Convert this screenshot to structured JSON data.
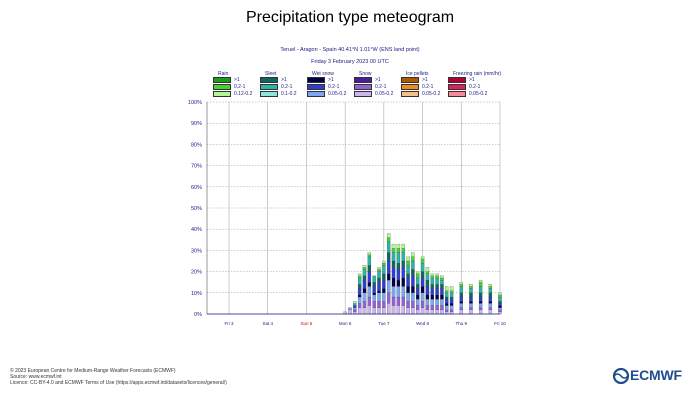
{
  "title": "Precipitation type meteogram",
  "subtitle_location": "Teruel - Aragon - Spain 40.41°N 1.01°W (ENS land point)",
  "subtitle_date": "Friday 3 February 2023 00 UTC",
  "legend": {
    "title_suffix": "(mm/hr)",
    "groups": [
      {
        "name": "Rain",
        "levels": [
          ">1",
          "0.2-1",
          "0.12-0.2"
        ],
        "colors": [
          "#1e9a1e",
          "#44d230",
          "#b4f59c"
        ]
      },
      {
        "name": "Sleet",
        "levels": [
          ">1",
          "0.2-1",
          "0.1-0.2"
        ],
        "colors": [
          "#13655f",
          "#29b5a7",
          "#8ee4d8"
        ]
      },
      {
        "name": "Wet snow",
        "levels": [
          ">1",
          "0.2-1",
          "0.05-0.2"
        ],
        "colors": [
          "#000044",
          "#2f3ed0",
          "#7ba7f0"
        ]
      },
      {
        "name": "Snow",
        "levels": [
          ">1",
          "0.2-1",
          "0.05-0.2"
        ],
        "colors": [
          "#4b1aa0",
          "#9460d8",
          "#cbb6ee"
        ]
      },
      {
        "name": "Ice pellets",
        "levels": [
          ">1",
          "0.2-1",
          "0.05-0.2"
        ],
        "colors": [
          "#b05a00",
          "#f08a20",
          "#f5c088"
        ]
      },
      {
        "name": "Freezing rain",
        "levels": [
          ">1",
          "0.2-1",
          "0.05-0.2"
        ],
        "colors": [
          "#b0003a",
          "#e01e5a",
          "#f58a9a"
        ]
      }
    ]
  },
  "footer": {
    "line1": "© 2023 European Centre for Medium-Range Weather Forecasts (ECMWF)",
    "line2": "Source: www.ecmwf.int",
    "line3": "Licence: CC-BY-4.0 and ECMWF Terms of Use (https://apps.ecmwf.int/datasets/licences/general/)"
  },
  "logo_text": "ECMWF",
  "chart_data": {
    "type": "bar",
    "stacked": true,
    "y_unit": "%",
    "ylim": [
      0,
      100
    ],
    "yticks": [
      "0%",
      "10%",
      "20%",
      "30%",
      "40%",
      "50%",
      "60%",
      "70%",
      "80%",
      "90%",
      "100%"
    ],
    "xticks": [
      {
        "label": "Fri 3",
        "color": "#1a1a80"
      },
      {
        "label": "Sat 4",
        "color": "#1a1a80"
      },
      {
        "label": "Sun 5",
        "color": "#d00000"
      },
      {
        "label": "Mon 6",
        "color": "#1a1a80"
      },
      {
        "label": "Tue 7",
        "color": "#1a1a80"
      },
      {
        "label": "Wed 8",
        "color": "#1a1a80"
      },
      {
        "label": "Thu 9",
        "color": "#1a1a80"
      },
      {
        "label": "Fri 10",
        "color": "#1a1a80"
      }
    ],
    "grid": true,
    "categories": [
      "Mon 6 00",
      "Mon 6 03",
      "Mon 6 06",
      "Mon 6 09",
      "Mon 6 12",
      "Mon 6 15",
      "Mon 6 18",
      "Mon 6 21",
      "Tue 7 00",
      "Tue 7 03",
      "Tue 7 06",
      "Tue 7 09",
      "Tue 7 12",
      "Tue 7 15",
      "Tue 7 18",
      "Tue 7 21",
      "Wed 8 00",
      "Wed 8 03",
      "Wed 8 06",
      "Wed 8 09",
      "Wed 8 12",
      "Wed 8 15",
      "Wed 8 18",
      "Thu 9 00",
      "Thu 9 06",
      "Thu 9 12",
      "Thu 9 18",
      "Fri 10 00"
    ],
    "x_days": [
      3.0,
      3.125,
      3.25,
      3.375,
      3.5,
      3.625,
      3.75,
      3.875,
      4.0,
      4.125,
      4.25,
      4.375,
      4.5,
      4.625,
      4.75,
      4.875,
      5.0,
      5.125,
      5.25,
      5.375,
      5.5,
      5.625,
      5.75,
      6.0,
      6.25,
      6.5,
      6.75,
      7.0
    ],
    "series": [
      {
        "name": "Rain 0.2-1",
        "values": [
          0,
          0,
          0,
          1,
          1,
          1,
          0,
          1,
          1,
          2,
          2,
          2,
          2,
          2,
          2,
          2,
          2,
          1,
          1,
          1,
          1,
          1,
          1,
          1,
          1,
          2,
          1,
          1
        ]
      },
      {
        "name": "Rain 0.12-0.2",
        "values": [
          0,
          0,
          1,
          1,
          1,
          1,
          0,
          1,
          1,
          2,
          2,
          2,
          2,
          2,
          2,
          1,
          1,
          2,
          1,
          1,
          1,
          2,
          2,
          1,
          1,
          1,
          1,
          1
        ]
      },
      {
        "name": "Sleet >1",
        "values": [
          0,
          0,
          0,
          2,
          2,
          3,
          2,
          2,
          3,
          4,
          3,
          3,
          3,
          2,
          3,
          2,
          3,
          3,
          2,
          2,
          2,
          1,
          1,
          2,
          2,
          2,
          2,
          1
        ]
      },
      {
        "name": "Sleet 0.2-1",
        "values": [
          0,
          0,
          1,
          3,
          3,
          4,
          3,
          3,
          4,
          5,
          4,
          5,
          4,
          4,
          4,
          3,
          4,
          3,
          3,
          3,
          2,
          2,
          2,
          3,
          2,
          3,
          2,
          2
        ]
      },
      {
        "name": "Wet snow >1",
        "values": [
          0,
          0,
          0,
          1,
          2,
          2,
          1,
          1,
          2,
          3,
          4,
          3,
          4,
          3,
          3,
          2,
          3,
          2,
          2,
          2,
          2,
          1,
          1,
          1,
          1,
          1,
          1,
          1
        ]
      },
      {
        "name": "Wet snow 0.2-1",
        "values": [
          0,
          0,
          1,
          3,
          4,
          5,
          3,
          4,
          4,
          6,
          5,
          5,
          5,
          4,
          5,
          3,
          4,
          4,
          3,
          3,
          3,
          2,
          2,
          2,
          2,
          2,
          2,
          1
        ]
      },
      {
        "name": "Wet snow 0.05-0.2",
        "values": [
          0,
          1,
          1,
          3,
          4,
          5,
          3,
          4,
          4,
          6,
          5,
          5,
          5,
          4,
          4,
          3,
          4,
          3,
          3,
          3,
          3,
          2,
          2,
          2,
          2,
          2,
          2,
          1
        ]
      },
      {
        "name": "Snow 0.2-1",
        "values": [
          0,
          0,
          1,
          2,
          3,
          4,
          3,
          3,
          3,
          5,
          4,
          4,
          4,
          3,
          3,
          2,
          3,
          2,
          2,
          2,
          2,
          1,
          1,
          1,
          1,
          1,
          1,
          1
        ]
      },
      {
        "name": "Snow 0.05-0.2",
        "values": [
          1,
          2,
          1,
          3,
          3,
          4,
          3,
          3,
          3,
          5,
          4,
          4,
          4,
          3,
          3,
          2,
          3,
          2,
          2,
          2,
          2,
          1,
          1,
          2,
          2,
          2,
          2,
          1
        ]
      }
    ]
  }
}
